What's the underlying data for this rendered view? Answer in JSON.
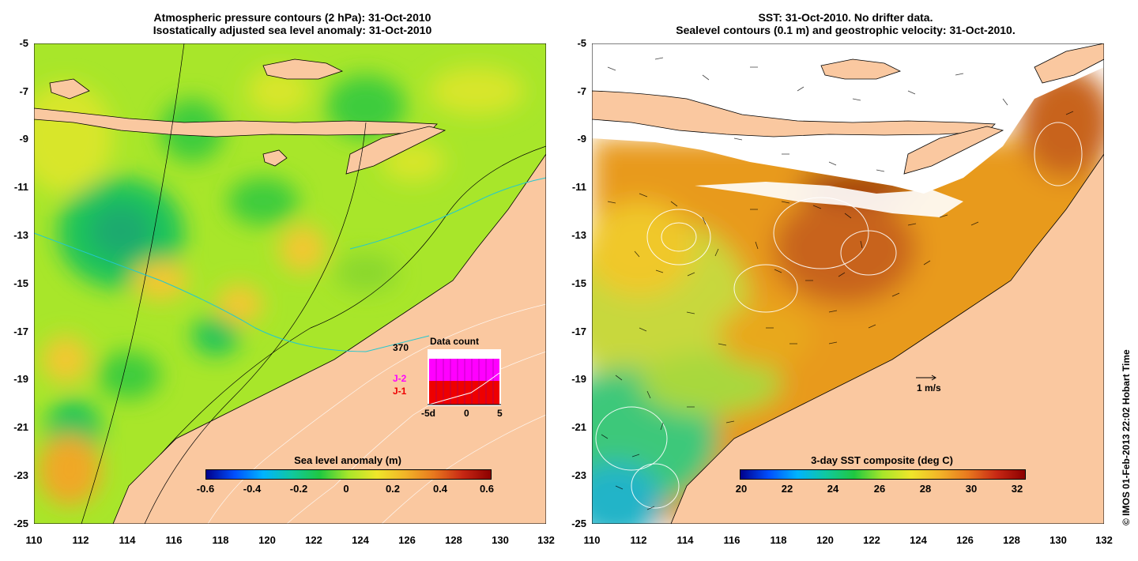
{
  "left_panel": {
    "title_line1": "Atmospheric pressure contours (2 hPa): 31-Oct-2010",
    "title_line2": "Isostatically adjusted sea level anomaly: 31-Oct-2010",
    "colorbar_title": "Sea level anomaly (m)",
    "colorbar_ticks": [
      "-0.6",
      "-0.4",
      "-0.2",
      "0",
      "0.2",
      "0.4",
      "0.6"
    ],
    "inset": {
      "title": "Data count",
      "max_label": "370",
      "series_j2": "J-2",
      "series_j1": "J-1",
      "x_ticks": [
        "-5d",
        "0",
        "5"
      ],
      "j2_color": "#ff00ff",
      "j1_color": "#ee0000"
    }
  },
  "right_panel": {
    "title_line1": "SST: 31-Oct-2010. No drifter data.",
    "title_line2": "Sealevel contours (0.1 m) and geostrophic velocity: 31-Oct-2010.",
    "colorbar_title": "3-day SST composite (deg C)",
    "colorbar_ticks": [
      "20",
      "22",
      "24",
      "26",
      "28",
      "30",
      "32"
    ],
    "velocity_label": "1 m/s"
  },
  "axes": {
    "x_ticks": [
      "110",
      "112",
      "114",
      "116",
      "118",
      "120",
      "122",
      "124",
      "126",
      "128",
      "130",
      "132"
    ],
    "y_ticks": [
      "-5",
      "-7",
      "-9",
      "-11",
      "-13",
      "-15",
      "-17",
      "-19",
      "-21",
      "-23",
      "-25"
    ]
  },
  "copyright": "© IMOS 01-Feb-2013 22:02 Hobart Time",
  "colors": {
    "land": "#fac8a0",
    "sea_anomaly_base": "#9ee62e",
    "sst_warm": "#e07a14",
    "sst_cool": "#2ec88a"
  }
}
